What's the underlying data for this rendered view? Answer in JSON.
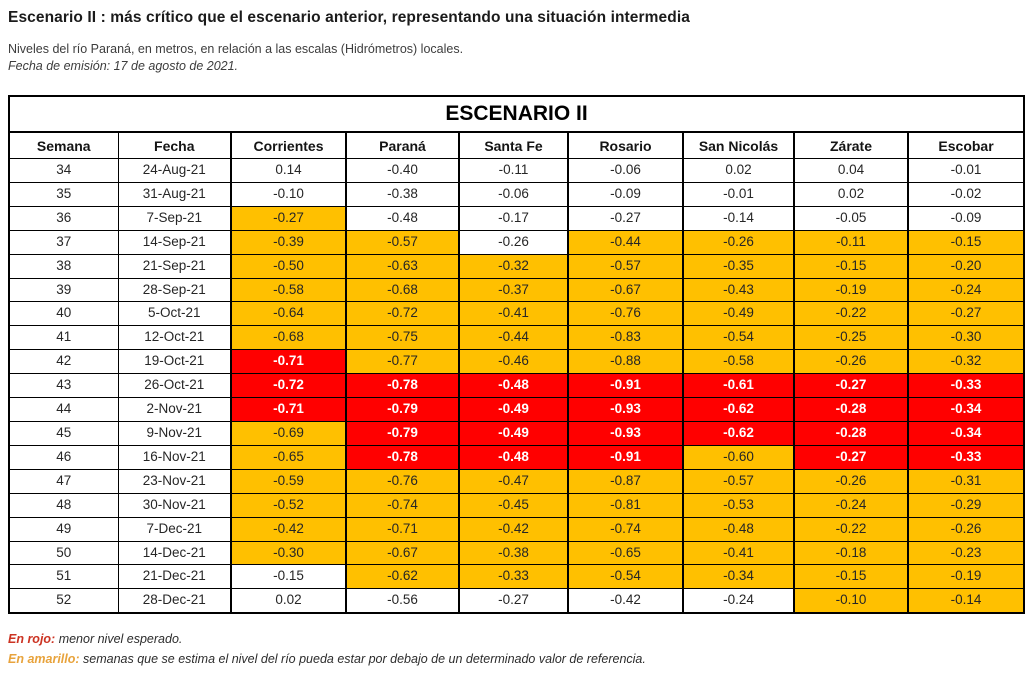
{
  "page": {
    "title": "Escenario II : más crítico que el escenario anterior, representando una situación intermedia",
    "subtitle": "Niveles del río Paraná, en metros, en relación a las escalas (Hidrómetros) locales.",
    "emission": "Fecha de emisión: 17 de agosto de 2021."
  },
  "table": {
    "title": "ESCENARIO II",
    "columns": [
      "Semana",
      "Fecha",
      "Corrientes",
      "Paraná",
      "Santa Fe",
      "Rosario",
      "San Nicolás",
      "Zárate",
      "Escobar"
    ],
    "rows": [
      {
        "semana": "34",
        "fecha": "24-Aug-21",
        "values": [
          "0.14",
          "-0.40",
          "-0.11",
          "-0.06",
          "0.02",
          "0.04",
          "-0.01"
        ],
        "colors": [
          "w",
          "w",
          "w",
          "w",
          "w",
          "w",
          "w"
        ]
      },
      {
        "semana": "35",
        "fecha": "31-Aug-21",
        "values": [
          "-0.10",
          "-0.38",
          "-0.06",
          "-0.09",
          "-0.01",
          "0.02",
          "-0.02"
        ],
        "colors": [
          "w",
          "w",
          "w",
          "w",
          "w",
          "w",
          "w"
        ]
      },
      {
        "semana": "36",
        "fecha": "7-Sep-21",
        "values": [
          "-0.27",
          "-0.48",
          "-0.17",
          "-0.27",
          "-0.14",
          "-0.05",
          "-0.09"
        ],
        "colors": [
          "o",
          "w",
          "w",
          "w",
          "w",
          "w",
          "w"
        ]
      },
      {
        "semana": "37",
        "fecha": "14-Sep-21",
        "values": [
          "-0.39",
          "-0.57",
          "-0.26",
          "-0.44",
          "-0.26",
          "-0.11",
          "-0.15"
        ],
        "colors": [
          "o",
          "o",
          "w",
          "o",
          "o",
          "o",
          "o"
        ]
      },
      {
        "semana": "38",
        "fecha": "21-Sep-21",
        "values": [
          "-0.50",
          "-0.63",
          "-0.32",
          "-0.57",
          "-0.35",
          "-0.15",
          "-0.20"
        ],
        "colors": [
          "o",
          "o",
          "o",
          "o",
          "o",
          "o",
          "o"
        ]
      },
      {
        "semana": "39",
        "fecha": "28-Sep-21",
        "values": [
          "-0.58",
          "-0.68",
          "-0.37",
          "-0.67",
          "-0.43",
          "-0.19",
          "-0.24"
        ],
        "colors": [
          "o",
          "o",
          "o",
          "o",
          "o",
          "o",
          "o"
        ]
      },
      {
        "semana": "40",
        "fecha": "5-Oct-21",
        "values": [
          "-0.64",
          "-0.72",
          "-0.41",
          "-0.76",
          "-0.49",
          "-0.22",
          "-0.27"
        ],
        "colors": [
          "o",
          "o",
          "o",
          "o",
          "o",
          "o",
          "o"
        ]
      },
      {
        "semana": "41",
        "fecha": "12-Oct-21",
        "values": [
          "-0.68",
          "-0.75",
          "-0.44",
          "-0.83",
          "-0.54",
          "-0.25",
          "-0.30"
        ],
        "colors": [
          "o",
          "o",
          "o",
          "o",
          "o",
          "o",
          "o"
        ]
      },
      {
        "semana": "42",
        "fecha": "19-Oct-21",
        "values": [
          "-0.71",
          "-0.77",
          "-0.46",
          "-0.88",
          "-0.58",
          "-0.26",
          "-0.32"
        ],
        "colors": [
          "r",
          "o",
          "o",
          "o",
          "o",
          "o",
          "o"
        ]
      },
      {
        "semana": "43",
        "fecha": "26-Oct-21",
        "values": [
          "-0.72",
          "-0.78",
          "-0.48",
          "-0.91",
          "-0.61",
          "-0.27",
          "-0.33"
        ],
        "colors": [
          "r",
          "r",
          "r",
          "r",
          "r",
          "r",
          "r"
        ]
      },
      {
        "semana": "44",
        "fecha": "2-Nov-21",
        "values": [
          "-0.71",
          "-0.79",
          "-0.49",
          "-0.93",
          "-0.62",
          "-0.28",
          "-0.34"
        ],
        "colors": [
          "r",
          "r",
          "r",
          "r",
          "r",
          "r",
          "r"
        ]
      },
      {
        "semana": "45",
        "fecha": "9-Nov-21",
        "values": [
          "-0.69",
          "-0.79",
          "-0.49",
          "-0.93",
          "-0.62",
          "-0.28",
          "-0.34"
        ],
        "colors": [
          "o",
          "r",
          "r",
          "r",
          "r",
          "r",
          "r"
        ]
      },
      {
        "semana": "46",
        "fecha": "16-Nov-21",
        "values": [
          "-0.65",
          "-0.78",
          "-0.48",
          "-0.91",
          "-0.60",
          "-0.27",
          "-0.33"
        ],
        "colors": [
          "o",
          "r",
          "r",
          "r",
          "o",
          "r",
          "r"
        ]
      },
      {
        "semana": "47",
        "fecha": "23-Nov-21",
        "values": [
          "-0.59",
          "-0.76",
          "-0.47",
          "-0.87",
          "-0.57",
          "-0.26",
          "-0.31"
        ],
        "colors": [
          "o",
          "o",
          "o",
          "o",
          "o",
          "o",
          "o"
        ]
      },
      {
        "semana": "48",
        "fecha": "30-Nov-21",
        "values": [
          "-0.52",
          "-0.74",
          "-0.45",
          "-0.81",
          "-0.53",
          "-0.24",
          "-0.29"
        ],
        "colors": [
          "o",
          "o",
          "o",
          "o",
          "o",
          "o",
          "o"
        ]
      },
      {
        "semana": "49",
        "fecha": "7-Dec-21",
        "values": [
          "-0.42",
          "-0.71",
          "-0.42",
          "-0.74",
          "-0.48",
          "-0.22",
          "-0.26"
        ],
        "colors": [
          "o",
          "o",
          "o",
          "o",
          "o",
          "o",
          "o"
        ]
      },
      {
        "semana": "50",
        "fecha": "14-Dec-21",
        "values": [
          "-0.30",
          "-0.67",
          "-0.38",
          "-0.65",
          "-0.41",
          "-0.18",
          "-0.23"
        ],
        "colors": [
          "o",
          "o",
          "o",
          "o",
          "o",
          "o",
          "o"
        ]
      },
      {
        "semana": "51",
        "fecha": "21-Dec-21",
        "values": [
          "-0.15",
          "-0.62",
          "-0.33",
          "-0.54",
          "-0.34",
          "-0.15",
          "-0.19"
        ],
        "colors": [
          "w",
          "o",
          "o",
          "o",
          "o",
          "o",
          "o"
        ]
      },
      {
        "semana": "52",
        "fecha": "28-Dec-21",
        "values": [
          "0.02",
          "-0.56",
          "-0.27",
          "-0.42",
          "-0.24",
          "-0.10",
          "-0.14"
        ],
        "colors": [
          "w",
          "w",
          "w",
          "w",
          "w",
          "o",
          "o"
        ]
      }
    ]
  },
  "legend": {
    "red_label": "En rojo:",
    "red_text": " menor nivel esperado.",
    "yellow_label": "En amarillo:",
    "yellow_text": " semanas que se estima el nivel del río pueda estar por debajo de un determinado valor de referencia."
  },
  "colors": {
    "cell_orange": "#FFC000",
    "cell_red": "#FF0000",
    "red_cell_text": "#FFFFFF",
    "legend_red_label": "#CC3322",
    "legend_orange_label": "#E8A33C"
  }
}
